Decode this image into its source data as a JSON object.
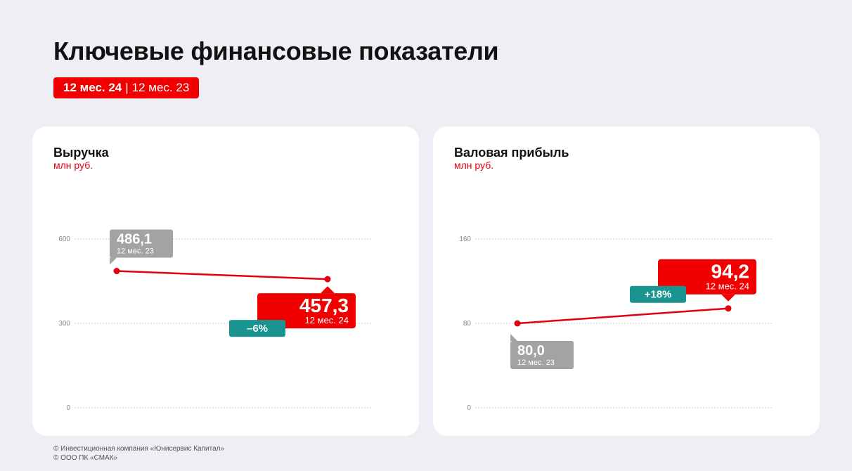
{
  "header": {
    "title": "Ключевые финансовые показатели",
    "period_current": "12 мес. 24",
    "period_separator": "|",
    "period_previous": "12 мес. 23"
  },
  "colors": {
    "current": "#f00000",
    "previous": "#a3a3a3",
    "change": "#1a9490",
    "line": "#e3000f",
    "grid": "#cfcfcf"
  },
  "chart_data": [
    {
      "type": "line",
      "title": "Выручка",
      "ylabel": "млн руб.",
      "categories": [
        "12 мес. 23",
        "12 мес. 24"
      ],
      "values": [
        486.1,
        457.3
      ],
      "value_labels": [
        "486,1",
        "457,3"
      ],
      "ylim": [
        0,
        600
      ],
      "yticks": [
        0,
        300,
        600
      ],
      "ytick_labels": [
        "0",
        "300",
        "600"
      ],
      "change_label": "–6%",
      "grid": true
    },
    {
      "type": "line",
      "title": "Валовая прибыль",
      "ylabel": "млн руб.",
      "categories": [
        "12 мес. 23",
        "12 мес. 24"
      ],
      "values": [
        80.0,
        94.2
      ],
      "value_labels": [
        "80,0",
        "94,2"
      ],
      "ylim": [
        0,
        160
      ],
      "yticks": [
        0,
        80,
        160
      ],
      "ytick_labels": [
        "0",
        "80",
        "160"
      ],
      "change_label": "+18%",
      "grid": true
    }
  ],
  "footer": {
    "line1": "© Инвестиционная компания «Юнисервис Капитал»",
    "line2": "© ООО ПК «СМАК»"
  }
}
